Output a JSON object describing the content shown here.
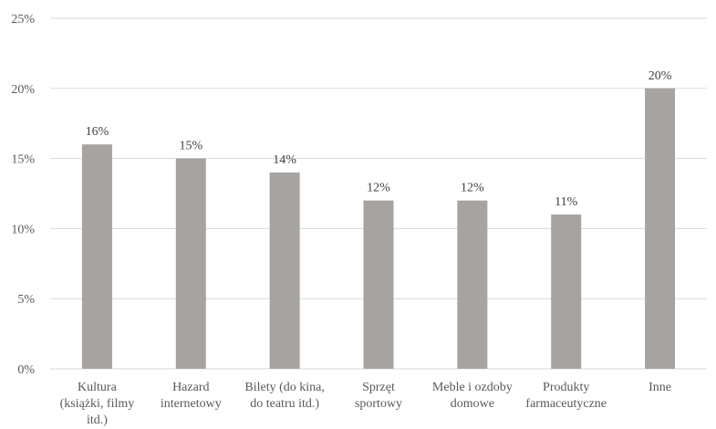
{
  "chart_data": {
    "type": "bar",
    "title": "",
    "xlabel": "",
    "ylabel": "",
    "ylim": [
      0,
      25
    ],
    "y_ticks": [
      0,
      5,
      10,
      15,
      20,
      25
    ],
    "y_tick_format": "percent",
    "grid": true,
    "legend": "none",
    "bar_color": "#a6a3a0",
    "gridline_color": "#d9d9d9",
    "categories": [
      [
        "Kultura",
        "(książki, filmy",
        "itd.)"
      ],
      [
        "Hazard",
        "internetowy"
      ],
      [
        "Bilety (do kina,",
        "do teatru itd.)"
      ],
      [
        "Sprzęt",
        "sportowy"
      ],
      [
        "Meble i ozdoby",
        "domowe"
      ],
      [
        "Produkty",
        "farmaceutyczne"
      ],
      [
        "Inne"
      ]
    ],
    "values": [
      16,
      15,
      14,
      12,
      12,
      11,
      20
    ],
    "data_labels": [
      "16%",
      "15%",
      "14%",
      "12%",
      "12%",
      "11%",
      "20%"
    ]
  }
}
